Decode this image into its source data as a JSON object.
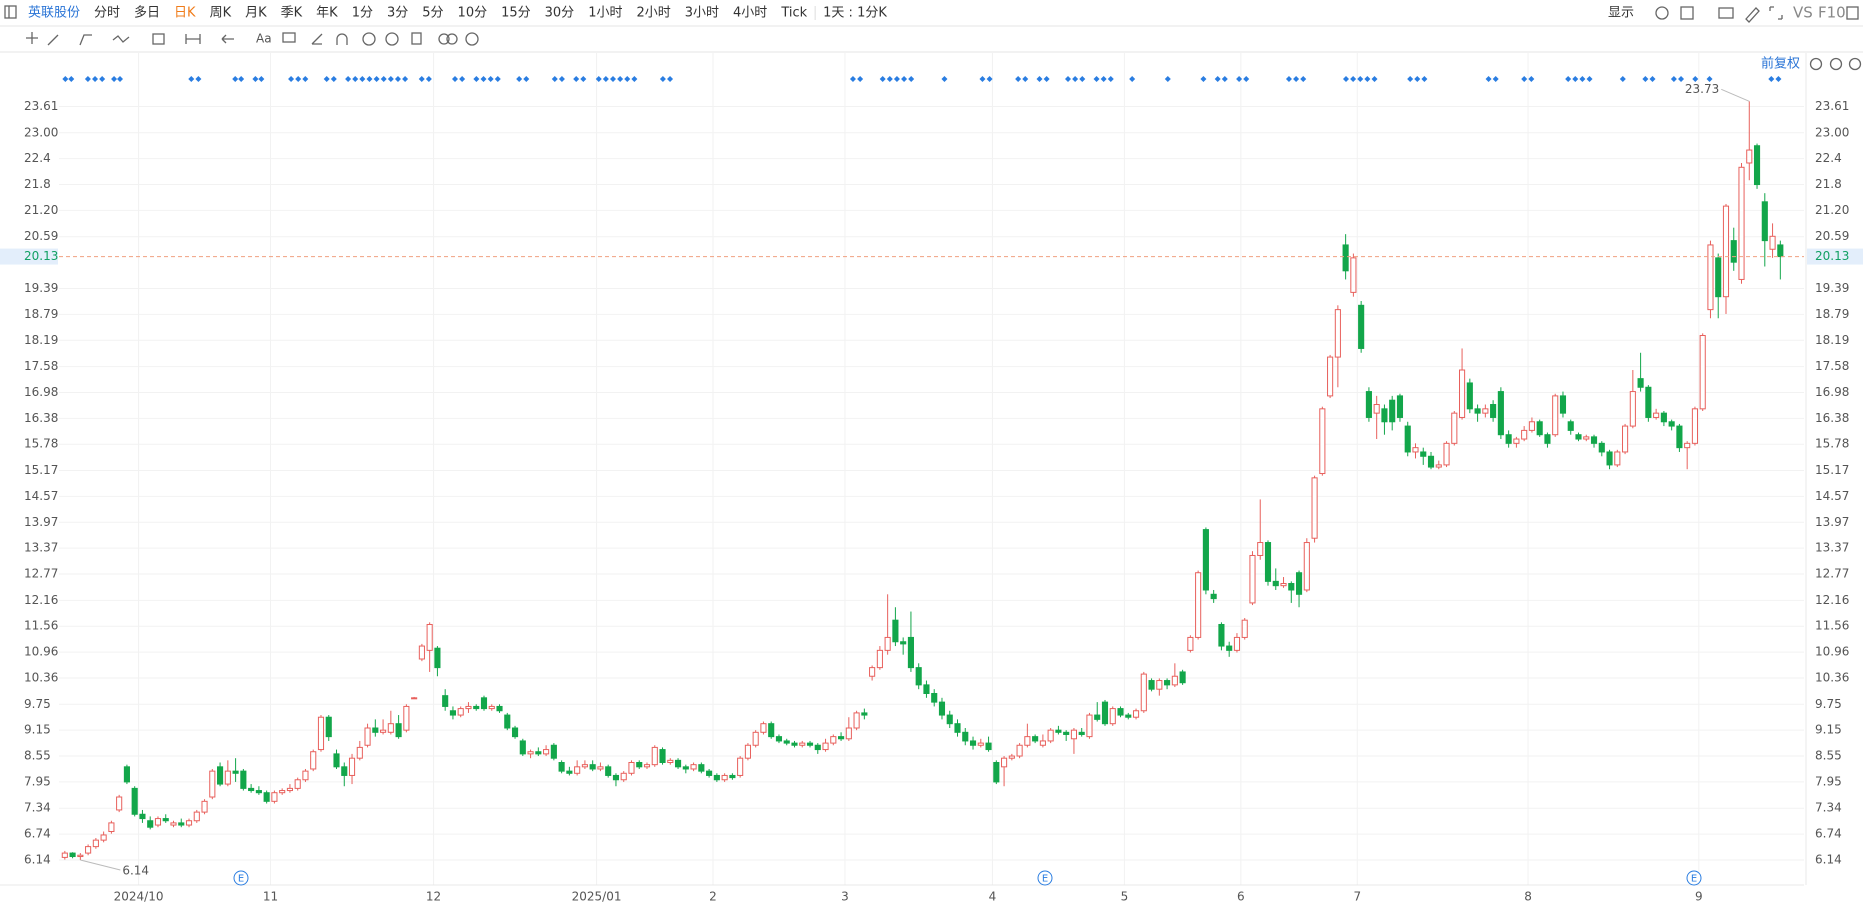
{
  "header": {
    "stock": "英联股份",
    "periods": [
      "分时",
      "多日",
      "日K",
      "周K",
      "月K",
      "季K",
      "年K",
      "1分",
      "3分",
      "5分",
      "10分",
      "15分",
      "30分",
      "1小时",
      "2小时",
      "3小时",
      "4小时",
      "Tick"
    ],
    "active_period": 2,
    "interval": "1天 : 1分K",
    "display": "显示",
    "vs": "VS",
    "f10": "F10"
  },
  "tools": {
    "text": "Aa"
  },
  "chart_data": {
    "type": "candlestick",
    "adjust": "前复权",
    "event_label": "E",
    "up_color": "#e8605c",
    "down_color": "#12a64a",
    "grid": true,
    "ylim": [
      5.56,
      24.85
    ],
    "yticks": [
      6.14,
      6.74,
      7.34,
      7.95,
      8.55,
      9.15,
      9.75,
      10.36,
      10.96,
      11.56,
      12.16,
      12.77,
      13.37,
      13.97,
      14.57,
      15.17,
      15.78,
      16.38,
      16.98,
      17.58,
      18.19,
      18.79,
      19.39,
      20.59,
      {
        "value": 21.2,
        "label": "21.20"
      },
      21.8,
      22.4,
      {
        "value": 23,
        "label": "23.00"
      },
      23.61
    ],
    "xticks": [
      {
        "value": 10,
        "label": "2024/10"
      },
      {
        "value": 27,
        "label": "11"
      },
      {
        "value": 48,
        "label": "12"
      },
      {
        "value": 69,
        "label": "2025/01"
      },
      {
        "value": 84,
        "label": "2"
      },
      {
        "value": 101,
        "label": "3"
      },
      {
        "value": 120,
        "label": "4"
      },
      {
        "value": 137,
        "label": "5"
      },
      {
        "value": 152,
        "label": "6"
      },
      {
        "value": 167,
        "label": "7"
      },
      {
        "value": 189,
        "label": "8"
      },
      {
        "value": 211,
        "label": "9"
      }
    ],
    "last_price": 20.13,
    "max_label": 23.73,
    "min_label": 6.14,
    "open": [
      6.2,
      6.3,
      6.22,
      6.3,
      6.45,
      6.6,
      6.8,
      7.3,
      8.3,
      7.8,
      7.2,
      7.05,
      6.95,
      7.1,
      6.95,
      7.0,
      6.95,
      7.05,
      7.25,
      7.6,
      8.3,
      7.9,
      8.2,
      8.2,
      7.8,
      7.75,
      7.7,
      7.5,
      7.7,
      7.75,
      7.8,
      8.0,
      8.25,
      8.7,
      9.45,
      8.6,
      8.3,
      8.1,
      8.5,
      8.8,
      9.2,
      9.1,
      9.1,
      9.3,
      9.15,
      9.9,
      10.8,
      11.0,
      11.05,
      9.95,
      9.6,
      9.5,
      9.65,
      9.7,
      9.9,
      9.65,
      9.7,
      9.5,
      9.2,
      8.9,
      8.6,
      8.65,
      8.6,
      8.8,
      8.4,
      8.2,
      8.15,
      8.3,
      8.35,
      8.25,
      8.3,
      8.1,
      8.0,
      8.15,
      8.4,
      8.3,
      8.35,
      8.7,
      8.4,
      8.45,
      8.3,
      8.25,
      8.35,
      8.2,
      8.1,
      8.0,
      8.1,
      8.1,
      8.5,
      8.8,
      9.1,
      9.3,
      9.0,
      8.9,
      8.85,
      8.8,
      8.85,
      8.8,
      8.7,
      8.85,
      9.0,
      8.95,
      9.2,
      9.55,
      10.4,
      10.6,
      11.0,
      11.7,
      11.2,
      11.3,
      10.6,
      10.2,
      10.0,
      9.8,
      9.5,
      9.3,
      9.1,
      8.9,
      8.8,
      8.85,
      8.4,
      8.3,
      8.5,
      8.55,
      8.8,
      9.0,
      8.8,
      8.9,
      9.15,
      9.1,
      8.95,
      9.1,
      9.0,
      9.5,
      9.8,
      9.3,
      9.65,
      9.5,
      9.45,
      9.6,
      10.3,
      10.1,
      10.3,
      10.2,
      10.5,
      11.0,
      11.3,
      13.8,
      12.3,
      11.6,
      11.1,
      11.0,
      11.3,
      12.1,
      13.2,
      13.5,
      12.6,
      12.5,
      12.55,
      12.8,
      12.4,
      13.6,
      15.1,
      16.9,
      17.8,
      20.4,
      19.3,
      19.0,
      17.0,
      16.5,
      16.6,
      16.8,
      16.9,
      16.2,
      15.6,
      15.6,
      15.5,
      15.25,
      15.3,
      15.8,
      16.4,
      17.2,
      16.6,
      16.5,
      16.7,
      17.0,
      16.0,
      15.8,
      15.9,
      16.1,
      16.3,
      16.0,
      16.0,
      16.9,
      16.3,
      16.0,
      15.9,
      15.95,
      15.8,
      15.6,
      15.3,
      15.6,
      16.2,
      17.3,
      17.1,
      16.4,
      16.5,
      16.3,
      16.2,
      15.7,
      15.8,
      16.6,
      18.9,
      20.1,
      19.2,
      20.5,
      19.6,
      22.3,
      22.7,
      21.4,
      20.3,
      20.4
    ],
    "high": [
      6.35,
      6.32,
      6.3,
      6.5,
      6.65,
      6.8,
      7.05,
      7.65,
      8.35,
      7.85,
      7.3,
      7.15,
      7.15,
      7.2,
      7.05,
      7.1,
      7.1,
      7.3,
      7.55,
      8.25,
      8.4,
      8.45,
      8.5,
      8.25,
      7.9,
      7.85,
      7.75,
      7.75,
      7.8,
      7.9,
      8.05,
      8.25,
      8.7,
      9.5,
      9.5,
      8.7,
      8.4,
      8.6,
      8.9,
      9.3,
      9.4,
      9.4,
      9.6,
      9.5,
      9.75,
      9.92,
      11.15,
      11.65,
      11.1,
      10.1,
      9.7,
      9.7,
      9.8,
      9.75,
      9.95,
      9.75,
      9.75,
      9.55,
      9.25,
      8.95,
      8.7,
      8.75,
      8.8,
      8.85,
      8.45,
      8.3,
      8.45,
      8.45,
      8.45,
      8.4,
      8.35,
      8.15,
      8.2,
      8.45,
      8.45,
      8.4,
      8.8,
      8.75,
      8.5,
      8.5,
      8.35,
      8.4,
      8.4,
      8.25,
      8.15,
      8.15,
      8.15,
      8.55,
      8.85,
      9.15,
      9.35,
      9.35,
      9.05,
      8.95,
      8.9,
      8.9,
      8.9,
      8.85,
      8.95,
      9.05,
      9.1,
      9.45,
      9.6,
      9.65,
      10.65,
      11.1,
      12.3,
      12.0,
      11.3,
      11.9,
      10.7,
      10.3,
      10.1,
      9.9,
      9.6,
      9.4,
      9.2,
      9.0,
      8.95,
      9.0,
      8.45,
      8.55,
      8.6,
      8.85,
      9.3,
      9.05,
      9.05,
      9.2,
      9.25,
      9.15,
      9.2,
      9.2,
      9.55,
      9.8,
      9.85,
      9.7,
      9.7,
      9.55,
      9.65,
      10.5,
      10.35,
      10.35,
      10.35,
      10.7,
      10.55,
      11.35,
      12.85,
      13.85,
      12.4,
      11.65,
      11.2,
      11.4,
      11.75,
      13.3,
      14.5,
      13.55,
      12.9,
      12.7,
      12.6,
      12.85,
      13.6,
      15.05,
      16.65,
      17.85,
      19.0,
      20.65,
      20.2,
      19.1,
      17.1,
      16.9,
      16.7,
      16.9,
      16.95,
      16.3,
      15.8,
      15.7,
      15.6,
      15.4,
      15.85,
      16.55,
      18.0,
      17.3,
      16.7,
      16.7,
      16.8,
      17.1,
      16.1,
      15.95,
      16.2,
      16.4,
      16.35,
      16.05,
      16.95,
      17.0,
      16.35,
      16.05,
      16.0,
      16.0,
      15.85,
      15.65,
      15.65,
      16.25,
      17.5,
      17.9,
      17.15,
      16.6,
      16.55,
      16.35,
      16.25,
      15.85,
      16.65,
      18.35,
      20.5,
      20.2,
      21.35,
      20.8,
      22.3,
      23.73,
      22.75,
      21.6,
      20.9,
      20.5
    ],
    "low": [
      6.15,
      6.18,
      6.14,
      6.25,
      6.4,
      6.55,
      6.75,
      7.25,
      7.9,
      7.15,
      7.0,
      6.85,
      6.9,
      7.0,
      6.9,
      6.9,
      6.9,
      7.0,
      7.2,
      7.55,
      7.85,
      7.85,
      7.95,
      7.75,
      7.7,
      7.65,
      7.45,
      7.45,
      7.65,
      7.7,
      7.75,
      7.95,
      8.2,
      8.65,
      8.9,
      8.25,
      7.85,
      7.9,
      8.45,
      8.75,
      9.0,
      9.05,
      9.05,
      8.95,
      9.1,
      9.88,
      10.75,
      10.5,
      10.4,
      9.6,
      9.4,
      9.45,
      9.55,
      9.6,
      9.6,
      9.6,
      9.55,
      9.15,
      8.95,
      8.55,
      8.5,
      8.55,
      8.55,
      8.45,
      8.15,
      8.1,
      8.1,
      8.25,
      8.2,
      8.2,
      8.05,
      7.85,
      7.95,
      8.1,
      8.25,
      8.25,
      8.3,
      8.35,
      8.35,
      8.25,
      8.15,
      8.2,
      8.15,
      8.05,
      7.95,
      7.95,
      8.0,
      8.05,
      8.45,
      8.75,
      9.05,
      8.95,
      8.85,
      8.8,
      8.75,
      8.75,
      8.75,
      8.6,
      8.65,
      8.8,
      8.9,
      8.9,
      9.15,
      9.4,
      10.3,
      10.55,
      10.9,
      11.1,
      10.9,
      10.5,
      10.1,
      9.9,
      9.7,
      9.4,
      9.2,
      9.0,
      8.8,
      8.7,
      8.75,
      8.65,
      7.9,
      7.85,
      8.45,
      8.5,
      8.75,
      8.85,
      8.75,
      8.85,
      9.05,
      8.9,
      8.6,
      9.0,
      8.95,
      9.35,
      9.25,
      9.25,
      9.45,
      9.4,
      9.4,
      9.55,
      10.05,
      9.95,
      10.1,
      10.15,
      10.2,
      10.95,
      11.25,
      12.3,
      12.1,
      11.0,
      10.85,
      10.95,
      11.25,
      12.05,
      13.1,
      12.5,
      12.4,
      12.45,
      12.1,
      12.0,
      12.35,
      13.5,
      15.05,
      16.85,
      17.1,
      19.6,
      19.2,
      17.9,
      16.3,
      15.9,
      16.0,
      16.1,
      16.3,
      15.5,
      15.45,
      15.3,
      15.2,
      15.2,
      15.25,
      15.75,
      16.35,
      16.5,
      16.3,
      16.4,
      16.3,
      15.9,
      15.7,
      15.7,
      15.85,
      16.05,
      15.95,
      15.7,
      15.95,
      16.4,
      16.0,
      15.85,
      15.85,
      15.7,
      15.5,
      15.2,
      15.25,
      15.55,
      16.15,
      17.0,
      16.3,
      16.35,
      16.2,
      16.1,
      15.6,
      15.2,
      15.75,
      16.55,
      18.7,
      18.7,
      18.8,
      19.8,
      19.5,
      21.9,
      21.7,
      19.9,
      20.1,
      19.6
    ],
    "close": [
      6.3,
      6.22,
      6.25,
      6.45,
      6.6,
      6.72,
      7.0,
      7.6,
      7.95,
      7.2,
      7.1,
      6.9,
      7.1,
      7.05,
      7.0,
      6.95,
      7.05,
      7.25,
      7.5,
      8.2,
      7.9,
      8.2,
      8.15,
      7.8,
      7.75,
      7.7,
      7.5,
      7.7,
      7.75,
      7.8,
      8.0,
      8.2,
      8.65,
      9.45,
      9.0,
      8.3,
      8.1,
      8.5,
      8.75,
      9.2,
      9.1,
      9.15,
      9.3,
      9.0,
      9.7,
      9.9,
      11.1,
      11.6,
      10.6,
      9.7,
      9.5,
      9.65,
      9.7,
      9.65,
      9.65,
      9.7,
      9.6,
      9.2,
      9.0,
      8.6,
      8.65,
      8.6,
      8.7,
      8.5,
      8.2,
      8.15,
      8.3,
      8.35,
      8.25,
      8.3,
      8.1,
      8.0,
      8.15,
      8.4,
      8.3,
      8.35,
      8.75,
      8.4,
      8.45,
      8.3,
      8.25,
      8.35,
      8.2,
      8.1,
      8.0,
      8.1,
      8.05,
      8.5,
      8.8,
      9.1,
      9.3,
      9.0,
      8.9,
      8.85,
      8.8,
      8.85,
      8.8,
      8.7,
      8.85,
      9.0,
      8.95,
      9.2,
      9.55,
      9.5,
      10.6,
      11.0,
      11.3,
      11.2,
      11.15,
      10.6,
      10.2,
      10.0,
      9.8,
      9.5,
      9.3,
      9.1,
      8.9,
      8.8,
      8.85,
      8.7,
      7.95,
      8.5,
      8.55,
      8.8,
      9.0,
      8.9,
      8.9,
      9.15,
      9.1,
      9.05,
      9.15,
      9.05,
      9.5,
      9.4,
      9.3,
      9.65,
      9.5,
      9.45,
      9.6,
      10.45,
      10.1,
      10.3,
      10.2,
      10.4,
      10.25,
      11.3,
      12.8,
      12.4,
      12.2,
      11.1,
      11.0,
      11.3,
      11.7,
      13.2,
      13.5,
      12.6,
      12.5,
      12.55,
      12.4,
      12.3,
      13.5,
      15.0,
      16.6,
      17.8,
      18.9,
      19.8,
      20.1,
      18.0,
      16.4,
      16.7,
      16.3,
      16.3,
      16.4,
      15.6,
      15.7,
      15.5,
      15.25,
      15.3,
      15.8,
      16.5,
      17.5,
      16.6,
      16.5,
      16.6,
      16.4,
      16.0,
      15.8,
      15.9,
      16.1,
      16.3,
      16.0,
      15.8,
      16.9,
      16.5,
      16.1,
      15.9,
      15.95,
      15.8,
      15.6,
      15.3,
      15.6,
      16.2,
      17.0,
      17.1,
      16.4,
      16.5,
      16.3,
      16.2,
      15.7,
      15.8,
      16.6,
      18.3,
      20.4,
      19.2,
      21.3,
      20.0,
      22.2,
      22.6,
      21.8,
      20.5,
      20.6,
      20.13
    ]
  }
}
